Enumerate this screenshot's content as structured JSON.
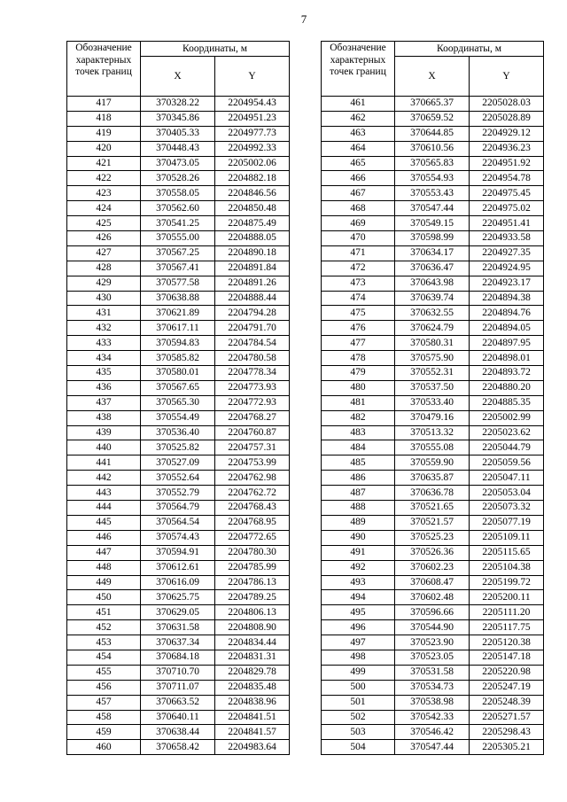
{
  "page_number": "7",
  "header": {
    "designation": "Обозначение характерных точек границ",
    "coordinates": "Координаты, м",
    "x": "X",
    "y": "Y"
  },
  "tables": [
    {
      "rows": [
        [
          "417",
          "370328.22",
          "2204954.43"
        ],
        [
          "418",
          "370345.86",
          "2204951.23"
        ],
        [
          "419",
          "370405.33",
          "2204977.73"
        ],
        [
          "420",
          "370448.43",
          "2204992.33"
        ],
        [
          "421",
          "370473.05",
          "2205002.06"
        ],
        [
          "422",
          "370528.26",
          "2204882.18"
        ],
        [
          "423",
          "370558.05",
          "2204846.56"
        ],
        [
          "424",
          "370562.60",
          "2204850.48"
        ],
        [
          "425",
          "370541.25",
          "2204875.49"
        ],
        [
          "426",
          "370555.00",
          "2204888.05"
        ],
        [
          "427",
          "370567.25",
          "2204890.18"
        ],
        [
          "428",
          "370567.41",
          "2204891.84"
        ],
        [
          "429",
          "370577.58",
          "2204891.26"
        ],
        [
          "430",
          "370638.88",
          "2204888.44"
        ],
        [
          "431",
          "370621.89",
          "2204794.28"
        ],
        [
          "432",
          "370617.11",
          "2204791.70"
        ],
        [
          "433",
          "370594.83",
          "2204784.54"
        ],
        [
          "434",
          "370585.82",
          "2204780.58"
        ],
        [
          "435",
          "370580.01",
          "2204778.34"
        ],
        [
          "436",
          "370567.65",
          "2204773.93"
        ],
        [
          "437",
          "370565.30",
          "2204772.93"
        ],
        [
          "438",
          "370554.49",
          "2204768.27"
        ],
        [
          "439",
          "370536.40",
          "2204760.87"
        ],
        [
          "440",
          "370525.82",
          "2204757.31"
        ],
        [
          "441",
          "370527.09",
          "2204753.99"
        ],
        [
          "442",
          "370552.64",
          "2204762.98"
        ],
        [
          "443",
          "370552.79",
          "2204762.72"
        ],
        [
          "444",
          "370564.79",
          "2204768.43"
        ],
        [
          "445",
          "370564.54",
          "2204768.95"
        ],
        [
          "446",
          "370574.43",
          "2204772.65"
        ],
        [
          "447",
          "370594.91",
          "2204780.30"
        ],
        [
          "448",
          "370612.61",
          "2204785.99"
        ],
        [
          "449",
          "370616.09",
          "2204786.13"
        ],
        [
          "450",
          "370625.75",
          "2204789.25"
        ],
        [
          "451",
          "370629.05",
          "2204806.13"
        ],
        [
          "452",
          "370631.58",
          "2204808.90"
        ],
        [
          "453",
          "370637.34",
          "2204834.44"
        ],
        [
          "454",
          "370684.18",
          "2204831.31"
        ],
        [
          "455",
          "370710.70",
          "2204829.78"
        ],
        [
          "456",
          "370711.07",
          "2204835.48"
        ],
        [
          "457",
          "370663.52",
          "2204838.96"
        ],
        [
          "458",
          "370640.11",
          "2204841.51"
        ],
        [
          "459",
          "370638.44",
          "2204841.57"
        ],
        [
          "460",
          "370658.42",
          "2204983.64"
        ]
      ]
    },
    {
      "rows": [
        [
          "461",
          "370665.37",
          "2205028.03"
        ],
        [
          "462",
          "370659.52",
          "2205028.89"
        ],
        [
          "463",
          "370644.85",
          "2204929.12"
        ],
        [
          "464",
          "370610.56",
          "2204936.23"
        ],
        [
          "465",
          "370565.83",
          "2204951.92"
        ],
        [
          "466",
          "370554.93",
          "2204954.78"
        ],
        [
          "467",
          "370553.43",
          "2204975.45"
        ],
        [
          "468",
          "370547.44",
          "2204975.02"
        ],
        [
          "469",
          "370549.15",
          "2204951.41"
        ],
        [
          "470",
          "370598.99",
          "2204933.58"
        ],
        [
          "471",
          "370634.17",
          "2204927.35"
        ],
        [
          "472",
          "370636.47",
          "2204924.95"
        ],
        [
          "473",
          "370643.98",
          "2204923.17"
        ],
        [
          "474",
          "370639.74",
          "2204894.38"
        ],
        [
          "475",
          "370632.55",
          "2204894.76"
        ],
        [
          "476",
          "370624.79",
          "2204894.05"
        ],
        [
          "477",
          "370580.31",
          "2204897.95"
        ],
        [
          "478",
          "370575.90",
          "2204898.01"
        ],
        [
          "479",
          "370552.31",
          "2204893.72"
        ],
        [
          "480",
          "370537.50",
          "2204880.20"
        ],
        [
          "481",
          "370533.40",
          "2204885.35"
        ],
        [
          "482",
          "370479.16",
          "2205002.99"
        ],
        [
          "483",
          "370513.32",
          "2205023.62"
        ],
        [
          "484",
          "370555.08",
          "2205044.79"
        ],
        [
          "485",
          "370559.90",
          "2205059.56"
        ],
        [
          "486",
          "370635.87",
          "2205047.11"
        ],
        [
          "487",
          "370636.78",
          "2205053.04"
        ],
        [
          "488",
          "370521.65",
          "2205073.32"
        ],
        [
          "489",
          "370521.57",
          "2205077.19"
        ],
        [
          "490",
          "370525.23",
          "2205109.11"
        ],
        [
          "491",
          "370526.36",
          "2205115.65"
        ],
        [
          "492",
          "370602.23",
          "2205104.38"
        ],
        [
          "493",
          "370608.47",
          "2205199.72"
        ],
        [
          "494",
          "370602.48",
          "2205200.11"
        ],
        [
          "495",
          "370596.66",
          "2205111.20"
        ],
        [
          "496",
          "370544.90",
          "2205117.75"
        ],
        [
          "497",
          "370523.90",
          "2205120.38"
        ],
        [
          "498",
          "370523.05",
          "2205147.18"
        ],
        [
          "499",
          "370531.58",
          "2205220.98"
        ],
        [
          "500",
          "370534.73",
          "2205247.19"
        ],
        [
          "501",
          "370538.98",
          "2205248.39"
        ],
        [
          "502",
          "370542.33",
          "2205271.57"
        ],
        [
          "503",
          "370546.42",
          "2205298.43"
        ],
        [
          "504",
          "370547.44",
          "2205305.21"
        ]
      ]
    }
  ]
}
